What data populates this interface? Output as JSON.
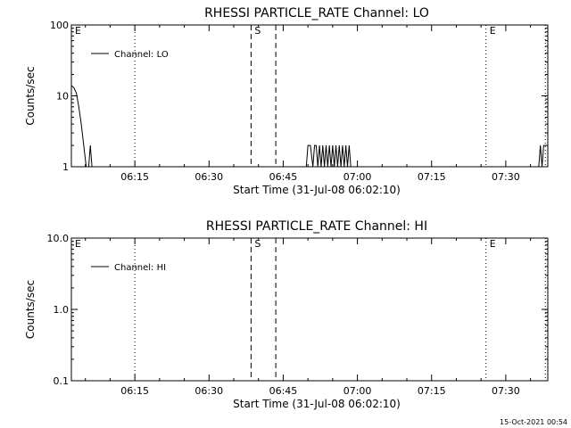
{
  "footer": {
    "timestamp": "15-Oct-2021 00:54"
  },
  "chart_data": [
    {
      "type": "line",
      "title": "RHESSI PARTICLE_RATE Channel: LO",
      "xlabel": "Start Time (31-Jul-08 06:02:10)",
      "ylabel": "Counts/sec",
      "y_scale": "log",
      "ylim": [
        1,
        100
      ],
      "xlim": [
        "06:02:10",
        "07:38:30"
      ],
      "y_ticks": [
        "1",
        "10",
        "100"
      ],
      "x_ticks": [
        "06:15",
        "06:30",
        "06:45",
        "07:00",
        "07:15",
        "07:30"
      ],
      "legend": {
        "position": "top-left",
        "entries": [
          "Channel: LO"
        ]
      },
      "markers": [
        {
          "label": "E",
          "time": "06:02:10",
          "style": "dotted"
        },
        {
          "time": "06:15:00",
          "style": "dotted"
        },
        {
          "label": "S",
          "time": "06:38:30",
          "style": "dashed"
        },
        {
          "time": "06:43:30",
          "style": "dashed"
        },
        {
          "label": "E",
          "time": "07:26:00",
          "style": "dotted"
        },
        {
          "time": "07:38:00",
          "style": "dotted"
        }
      ],
      "series": [
        {
          "name": "Channel: LO",
          "x": [
            "06:02:10",
            "06:02:40",
            "06:03:10",
            "06:03:40",
            "06:04:10",
            "06:04:40",
            "06:05:10",
            "06:05:40",
            "06:06:00",
            "06:06:20",
            "06:06:40",
            "06:49:40",
            "06:50:00",
            "06:50:30",
            "06:51:00",
            "06:51:20",
            "06:51:40",
            "06:52:00",
            "06:52:20",
            "06:52:40",
            "06:53:00",
            "06:53:20",
            "06:53:40",
            "06:54:00",
            "06:54:20",
            "06:54:40",
            "06:55:00",
            "06:55:20",
            "06:55:40",
            "06:56:00",
            "06:56:20",
            "06:56:40",
            "06:57:00",
            "06:57:20",
            "06:57:40",
            "06:58:00",
            "06:58:20",
            "06:58:40",
            "07:36:40",
            "07:37:00",
            "07:37:20",
            "07:37:40",
            "07:38:00"
          ],
          "values": [
            14,
            13,
            11,
            7,
            4,
            2,
            1,
            1,
            2,
            1,
            1,
            1,
            2,
            2,
            1,
            2,
            2,
            1,
            2,
            1,
            2,
            1,
            2,
            1,
            2,
            1,
            2,
            1,
            2,
            1,
            2,
            1,
            2,
            1,
            2,
            1,
            2,
            1,
            1,
            2,
            1,
            2,
            2
          ]
        }
      ]
    },
    {
      "type": "line",
      "title": "RHESSI PARTICLE_RATE Channel: HI",
      "xlabel": "Start Time (31-Jul-08 06:02:10)",
      "ylabel": "Counts/sec",
      "y_scale": "log",
      "ylim": [
        0.1,
        10
      ],
      "xlim": [
        "06:02:10",
        "07:38:30"
      ],
      "y_ticks": [
        "0.1",
        "1.0",
        "10.0"
      ],
      "x_ticks": [
        "06:15",
        "06:30",
        "06:45",
        "07:00",
        "07:15",
        "07:30"
      ],
      "legend": {
        "position": "top-left",
        "entries": [
          "Channel: HI"
        ]
      },
      "markers": [
        {
          "label": "E",
          "time": "06:02:10",
          "style": "dotted"
        },
        {
          "time": "06:15:00",
          "style": "dotted"
        },
        {
          "label": "S",
          "time": "06:38:30",
          "style": "dashed"
        },
        {
          "time": "06:43:30",
          "style": "dashed"
        },
        {
          "label": "E",
          "time": "07:26:00",
          "style": "dotted"
        },
        {
          "time": "07:38:00",
          "style": "dotted"
        }
      ],
      "series": [
        {
          "name": "Channel: HI",
          "x": [],
          "values": []
        }
      ]
    }
  ]
}
